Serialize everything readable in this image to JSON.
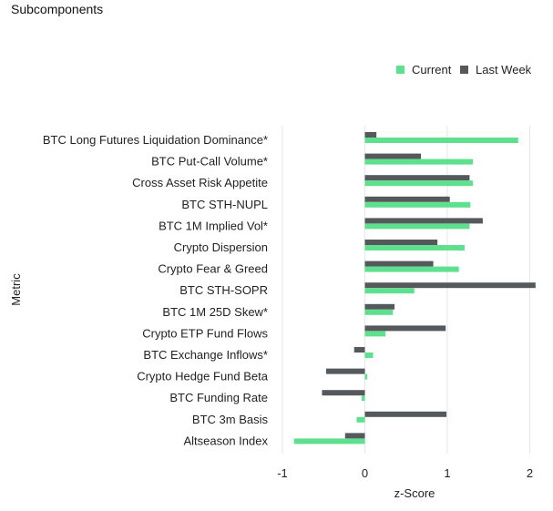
{
  "header": {
    "title": "Subcomponents"
  },
  "chart_data": {
    "type": "bar",
    "orientation": "horizontal",
    "title": "",
    "xlabel": "z-Score",
    "ylabel": "Metric",
    "xlim": [
      -1,
      2
    ],
    "xticks": [
      -1,
      0,
      1,
      2
    ],
    "grid": "vertical",
    "legend_position": "top-right",
    "categories": [
      "BTC Long Futures Liquidation Dominance*",
      "BTC Put-Call Volume*",
      "Cross Asset Risk Appetite",
      "BTC STH-NUPL",
      "BTC 1M Implied Vol*",
      "Crypto Dispersion",
      "Crypto Fear & Greed",
      "BTC STH-SOPR",
      "BTC 1M 25D Skew*",
      "Crypto ETP Fund Flows",
      "BTC Exchange Inflows*",
      "Crypto Hedge Fund Beta",
      "BTC Funding Rate",
      "BTC 3m Basis",
      "Altseason Index"
    ],
    "series": [
      {
        "name": "Current",
        "color": "#5ee08f",
        "values": [
          1.86,
          1.31,
          1.31,
          1.28,
          1.27,
          1.21,
          1.14,
          0.6,
          0.34,
          0.25,
          0.1,
          0.03,
          -0.04,
          -0.1,
          -0.86
        ]
      },
      {
        "name": "Last Week",
        "color": "#55595c",
        "values": [
          0.14,
          0.68,
          1.27,
          1.03,
          1.43,
          0.88,
          0.83,
          2.07,
          0.36,
          0.98,
          -0.13,
          -0.47,
          -0.52,
          0.99,
          -0.24
        ]
      }
    ]
  }
}
